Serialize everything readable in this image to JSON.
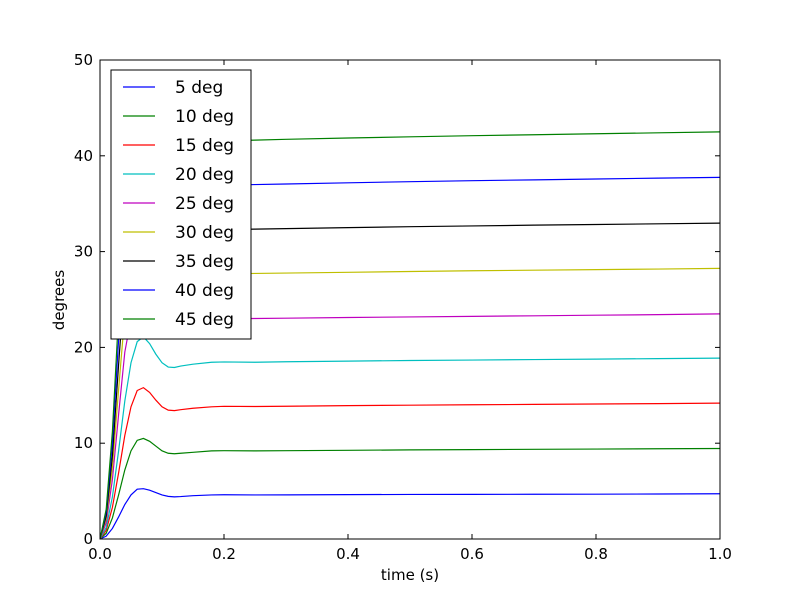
{
  "chart_data": {
    "type": "line",
    "title": "",
    "xlabel": "time (s)",
    "ylabel": "degrees",
    "xlim": [
      0.0,
      1.0
    ],
    "ylim": [
      0,
      50
    ],
    "xticks": [
      "0.0",
      "0.2",
      "0.4",
      "0.6",
      "0.8",
      "1.0"
    ],
    "yticks": [
      "0",
      "10",
      "20",
      "30",
      "40",
      "50"
    ],
    "grid": false,
    "legend_position": "upper-left",
    "x": [
      0.0,
      0.01,
      0.02,
      0.03,
      0.04,
      0.05,
      0.06,
      0.07,
      0.08,
      0.09,
      0.1,
      0.11,
      0.12,
      0.13,
      0.15,
      0.18,
      0.2,
      0.25,
      0.3,
      0.4,
      0.5,
      0.6,
      0.7,
      0.8,
      0.9,
      1.0
    ],
    "series": [
      {
        "name": "5 deg",
        "color": "#0000ff",
        "values": [
          0.0,
          0.3,
          1.1,
          2.3,
          3.6,
          4.6,
          5.2,
          5.25,
          5.1,
          4.85,
          4.6,
          4.45,
          4.4,
          4.43,
          4.52,
          4.6,
          4.62,
          4.6,
          4.61,
          4.63,
          4.65,
          4.66,
          4.67,
          4.68,
          4.7,
          4.72
        ]
      },
      {
        "name": "10 deg",
        "color": "#008000",
        "values": [
          0.0,
          0.6,
          2.2,
          4.6,
          7.2,
          9.2,
          10.3,
          10.5,
          10.2,
          9.7,
          9.2,
          8.95,
          8.9,
          8.95,
          9.05,
          9.2,
          9.22,
          9.2,
          9.22,
          9.26,
          9.3,
          9.33,
          9.36,
          9.39,
          9.42,
          9.45
        ]
      },
      {
        "name": "15 deg",
        "color": "#ff0000",
        "values": [
          0.0,
          0.9,
          3.3,
          6.9,
          10.8,
          13.8,
          15.5,
          15.8,
          15.3,
          14.5,
          13.8,
          13.45,
          13.4,
          13.5,
          13.65,
          13.8,
          13.85,
          13.83,
          13.86,
          13.92,
          13.97,
          14.01,
          14.05,
          14.09,
          14.13,
          14.18
        ]
      },
      {
        "name": "20 deg",
        "color": "#00bfbf",
        "values": [
          0.0,
          1.2,
          4.4,
          9.2,
          14.4,
          18.4,
          20.6,
          21.1,
          20.4,
          19.3,
          18.4,
          17.95,
          17.9,
          18.05,
          18.25,
          18.45,
          18.48,
          18.45,
          18.5,
          18.57,
          18.63,
          18.68,
          18.73,
          18.78,
          18.83,
          18.88
        ]
      },
      {
        "name": "25 deg",
        "color": "#bf00bf",
        "values": [
          0.0,
          1.7,
          6.2,
          13.0,
          19.5,
          23.0,
          23.4,
          23.1,
          22.9,
          22.85,
          22.9,
          22.9,
          22.9,
          22.92,
          22.95,
          22.98,
          23.0,
          23.02,
          23.05,
          23.12,
          23.18,
          23.24,
          23.3,
          23.36,
          23.42,
          23.5
        ]
      },
      {
        "name": "30 deg",
        "color": "#bfbf00",
        "values": [
          0.0,
          2.1,
          7.5,
          15.6,
          23.4,
          27.6,
          28.1,
          27.8,
          27.6,
          27.55,
          27.58,
          27.6,
          27.6,
          27.62,
          27.64,
          27.66,
          27.68,
          27.72,
          27.76,
          27.84,
          27.92,
          28.0,
          28.06,
          28.12,
          28.18,
          28.25
        ]
      },
      {
        "name": "35 deg",
        "color": "#000000",
        "values": [
          0.0,
          2.4,
          8.7,
          18.2,
          27.3,
          32.2,
          32.8,
          32.4,
          32.2,
          32.15,
          32.18,
          32.2,
          32.2,
          32.22,
          32.25,
          32.28,
          32.3,
          32.35,
          32.4,
          32.5,
          32.6,
          32.68,
          32.76,
          32.83,
          32.9,
          32.97
        ]
      },
      {
        "name": "40 deg",
        "color": "#0000ff",
        "values": [
          0.0,
          2.8,
          10.0,
          20.8,
          31.2,
          36.8,
          37.4,
          37.0,
          36.8,
          36.75,
          36.78,
          36.8,
          36.8,
          36.82,
          36.85,
          36.9,
          36.94,
          37.0,
          37.06,
          37.18,
          37.3,
          37.4,
          37.49,
          37.58,
          37.67,
          37.75
        ]
      },
      {
        "name": "45 deg",
        "color": "#008000",
        "values": [
          0.0,
          3.1,
          11.2,
          23.4,
          35.1,
          41.4,
          42.1,
          41.6,
          41.4,
          41.35,
          41.38,
          41.4,
          41.4,
          41.42,
          41.46,
          41.52,
          41.56,
          41.64,
          41.72,
          41.86,
          41.98,
          42.1,
          42.2,
          42.3,
          42.4,
          42.5
        ]
      }
    ]
  }
}
